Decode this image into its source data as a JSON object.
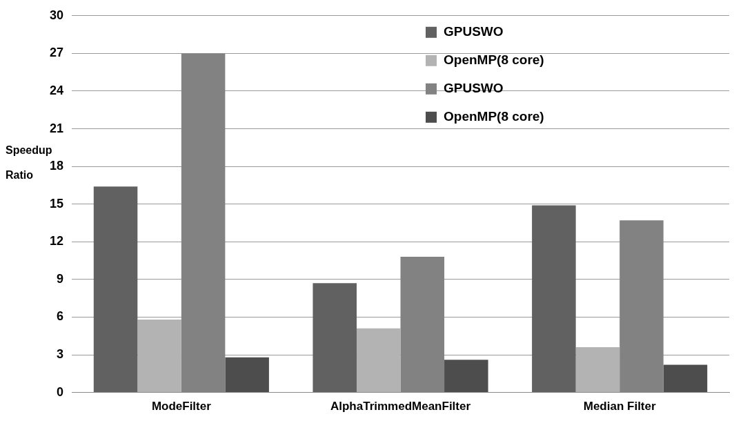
{
  "chart_data": {
    "type": "bar",
    "ylabel": "Speedup Ratio",
    "categories": [
      "ModeFilter",
      "AlphaTrimmedMeanFilter",
      "Median Filter"
    ],
    "series": [
      {
        "name": "GPUSWO",
        "color": "#616161",
        "values": [
          16.4,
          8.7,
          14.9
        ]
      },
      {
        "name": "OpenMP(8 core)",
        "color": "#b3b3b3",
        "values": [
          5.8,
          5.1,
          3.6
        ]
      },
      {
        "name": "GPUSWO",
        "color": "#828282",
        "values": [
          27,
          10.8,
          13.7
        ]
      },
      {
        "name": "OpenMP(8 core)",
        "color": "#4d4d4d",
        "values": [
          2.8,
          2.6,
          2.2
        ]
      }
    ],
    "ylim": [
      0,
      30
    ],
    "yticks": [
      0,
      3,
      6,
      9,
      12,
      15,
      18,
      21,
      24,
      27,
      30
    ],
    "grid": "y",
    "legend": "top right"
  }
}
